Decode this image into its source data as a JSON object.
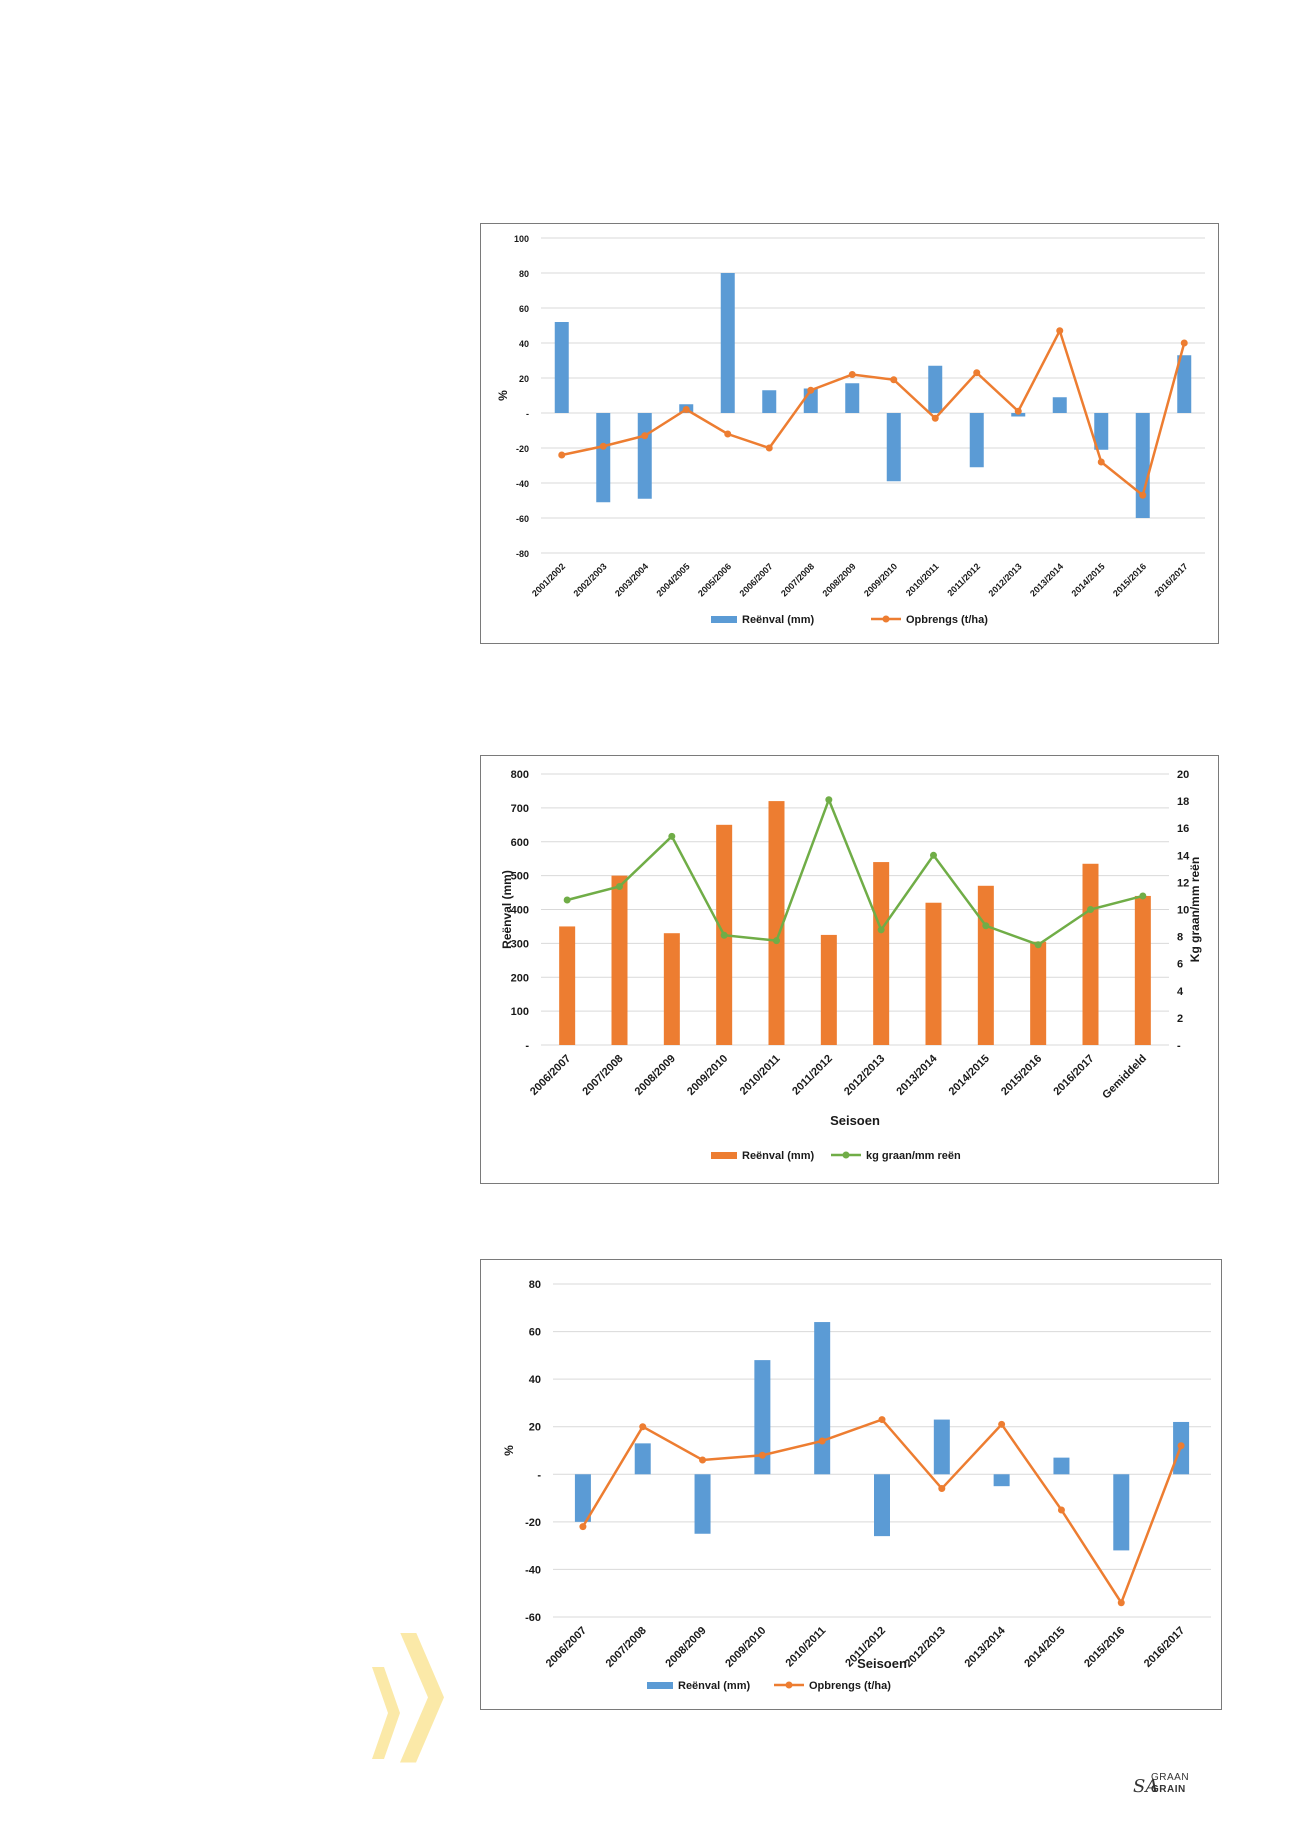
{
  "colors": {
    "blue": "#5b9bd5",
    "orange": "#ed7d31",
    "green": "#70ad47",
    "grid": "#d9d9d9",
    "text": "#1a1a1a",
    "chevron": "#fbe9a8"
  },
  "chart_data": [
    {
      "type": "bar",
      "ylabel": "%",
      "xlabel": "",
      "ylim": [
        -80,
        100
      ],
      "yticks": [
        100,
        80,
        60,
        40,
        20,
        0,
        -20,
        -40,
        -60,
        -80
      ],
      "ytick_labels": [
        "100",
        "80",
        "60",
        "40",
        "20",
        "-",
        "-20",
        "-40",
        "-60",
        "-80"
      ],
      "categories": [
        "2001/2002",
        "2002/2003",
        "2003/2004",
        "2004/2005",
        "2005/2006",
        "2006/2007",
        "2007/2008",
        "2008/2009",
        "2009/2010",
        "2010/2011",
        "2011/2012",
        "2012/2013",
        "2013/2014",
        "2014/2015",
        "2015/2016",
        "2016/2017"
      ],
      "series": [
        {
          "name": "Reënval (mm)",
          "type": "bar",
          "color": "#5b9bd5",
          "values": [
            52,
            -51,
            -49,
            5,
            80,
            13,
            14,
            17,
            -39,
            27,
            -31,
            -2,
            9,
            -21,
            -60,
            33
          ]
        },
        {
          "name": "Opbrengs (t/ha)",
          "type": "line",
          "color": "#ed7d31",
          "values": [
            -24,
            -19,
            -13,
            2,
            -12,
            -20,
            13,
            22,
            19,
            -3,
            23,
            1,
            47,
            -28,
            -47,
            40
          ]
        }
      ],
      "legend": "bottom"
    },
    {
      "type": "bar",
      "xlabel": "Seisoen",
      "ylabel": "Reënval (mm)",
      "y2label": "Kg graan/mm reën",
      "ylim": [
        0,
        800
      ],
      "y2lim": [
        0,
        20
      ],
      "yticks": [
        800,
        700,
        600,
        500,
        400,
        300,
        200,
        100,
        0
      ],
      "ytick_labels": [
        "800",
        "700",
        "600",
        "500",
        "400",
        "300",
        "200",
        "100",
        "-"
      ],
      "y2ticks": [
        20,
        18,
        16,
        14,
        12,
        10,
        8,
        6,
        4,
        2,
        0
      ],
      "y2tick_labels": [
        "20",
        "18",
        "16",
        "14",
        "12",
        "10",
        "8",
        "6",
        "4",
        "2",
        "-"
      ],
      "categories": [
        "2006/2007",
        "2007/2008",
        "2008/2009",
        "2009/2010",
        "2010/2011",
        "2011/2012",
        "2012/2013",
        "2013/2014",
        "2014/2015",
        "2015/2016",
        "2016/2017",
        "Gemiddeld"
      ],
      "series": [
        {
          "name": "Reënval (mm)",
          "type": "bar",
          "color": "#ed7d31",
          "values": [
            350,
            500,
            330,
            650,
            720,
            325,
            540,
            420,
            470,
            305,
            535,
            440
          ]
        },
        {
          "name": "kg graan/mm reën",
          "type": "line",
          "axis": "right",
          "color": "#70ad47",
          "values": [
            10.7,
            11.7,
            15.4,
            8.1,
            7.7,
            18.1,
            8.5,
            14.0,
            8.8,
            7.4,
            10.0,
            11.0
          ]
        }
      ],
      "legend": "bottom"
    },
    {
      "type": "bar",
      "xlabel": "Seisoen",
      "ylabel": "%",
      "ylim": [
        -60,
        80
      ],
      "yticks": [
        80,
        60,
        40,
        20,
        0,
        -20,
        -40,
        -60
      ],
      "ytick_labels": [
        "80",
        "60",
        "40",
        "20",
        "-",
        "-20",
        "-40",
        "-60"
      ],
      "categories": [
        "2006/2007",
        "2007/2008",
        "2008/2009",
        "2009/2010",
        "2010/2011",
        "2011/2012",
        "2012/2013",
        "2013/2014",
        "2014/2015",
        "2015/2016",
        "2016/2017"
      ],
      "series": [
        {
          "name": "Reënval (mm)",
          "type": "bar",
          "color": "#5b9bd5",
          "values": [
            -20,
            13,
            -25,
            48,
            64,
            -26,
            23,
            -5,
            7,
            -32,
            22
          ]
        },
        {
          "name": "Opbrengs (t/ha)",
          "type": "line",
          "color": "#ed7d31",
          "values": [
            -22,
            20,
            6,
            8,
            14,
            23,
            -6,
            21,
            -15,
            -54,
            12
          ]
        }
      ],
      "legend": "bottom"
    }
  ],
  "logo": {
    "sa": "SA",
    "graan": "GRAAN",
    "grain": "GRAIN"
  }
}
